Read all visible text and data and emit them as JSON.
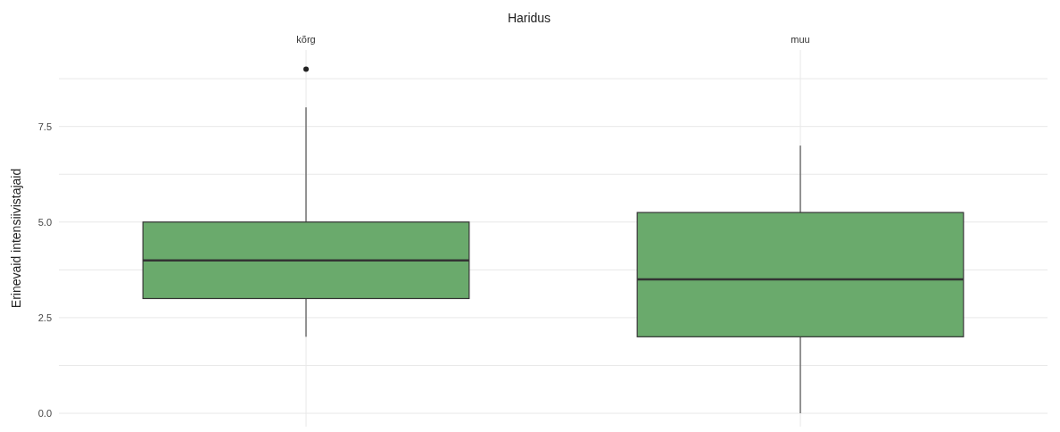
{
  "chart_data": {
    "type": "box",
    "title": "Haridus",
    "ylabel": "Erinevaid intensiivistajaid",
    "categories": [
      "kõrg",
      "muu"
    ],
    "color": "#6aaa6c",
    "boxes": [
      {
        "low": 2,
        "q1": 3,
        "median": 4,
        "q3": 5,
        "high": 8,
        "outliers": [
          9
        ]
      },
      {
        "low": 0,
        "q1": 2,
        "median": 3.5,
        "q3": 5.25,
        "high": 7
      }
    ],
    "ylim": [
      -0.35,
      9.5
    ],
    "yticks": [
      {
        "value": 0,
        "label": "0.0"
      },
      {
        "value": 1.25,
        "label": null
      },
      2.5,
      {
        "value": 3.75,
        "label": null
      },
      {
        "value": 5,
        "label": "5.0"
      },
      {
        "value": 6.25,
        "label": null
      },
      7.5,
      {
        "value": 8.75,
        "label": null
      }
    ],
    "grid": true
  }
}
